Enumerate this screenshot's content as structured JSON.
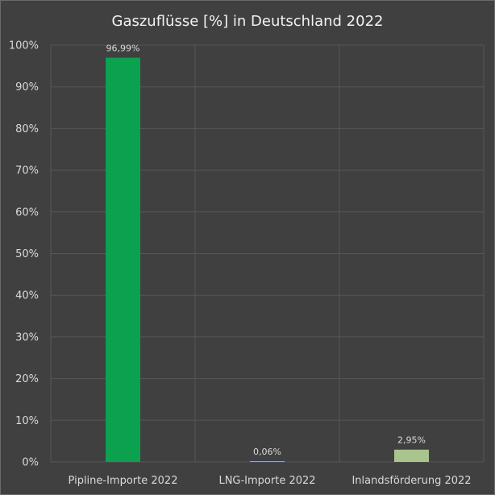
{
  "chart_data": {
    "type": "bar",
    "title": "Gaszuflüsse [%] in Deutschland 2022",
    "categories": [
      "Pipline-Importe 2022",
      "LNG-Importe 2022",
      "Inlandsförderung 2022"
    ],
    "values": [
      96.99,
      0.06,
      2.95
    ],
    "data_labels": [
      "96,99%",
      "0,06%",
      "2,95%"
    ],
    "colors": [
      "#0ba14f",
      "#e0a800",
      "#a9c48d"
    ],
    "ylim": [
      0,
      100
    ],
    "yticks": [
      "0%",
      "10%",
      "20%",
      "30%",
      "40%",
      "50%",
      "60%",
      "70%",
      "80%",
      "90%",
      "100%"
    ],
    "grid": true,
    "legend": "none",
    "xlabel": "",
    "ylabel": ""
  }
}
